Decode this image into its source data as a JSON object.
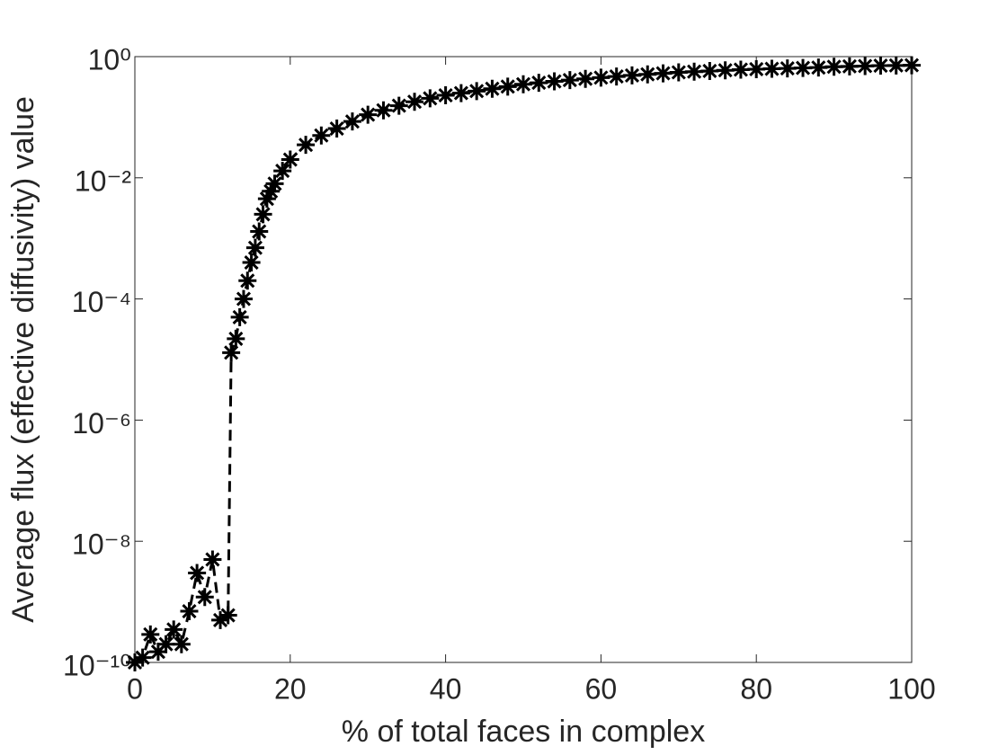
{
  "chart_data": {
    "type": "line",
    "xlabel": "% of total faces in complex",
    "ylabel": "Average flux (effective diffusivity) value",
    "x": [
      0,
      1,
      2,
      3,
      4,
      5,
      6,
      7,
      8,
      9,
      10,
      11,
      12,
      12.4,
      13,
      13.5,
      14,
      14.5,
      15,
      15.5,
      16,
      16.5,
      17,
      17.5,
      18,
      19,
      20,
      22,
      24,
      26,
      28,
      30,
      32,
      34,
      36,
      38,
      40,
      42,
      44,
      46,
      48,
      50,
      52,
      54,
      56,
      58,
      60,
      62,
      64,
      66,
      68,
      70,
      72,
      74,
      76,
      78,
      80,
      82,
      84,
      86,
      88,
      90,
      92,
      94,
      96,
      98,
      100
    ],
    "series": [
      {
        "color": "#000000",
        "values": [
          1e-10,
          1.2e-10,
          2.9e-10,
          1.5e-10,
          2e-10,
          3.5e-10,
          2e-10,
          7e-10,
          3e-09,
          1.2e-09,
          5e-09,
          5e-10,
          6e-10,
          1.3e-05,
          2.2e-05,
          5e-05,
          0.0001,
          0.0002,
          0.0004,
          0.0007,
          0.0013,
          0.0025,
          0.0045,
          0.006,
          0.008,
          0.013,
          0.02,
          0.035,
          0.05,
          0.065,
          0.085,
          0.11,
          0.13,
          0.155,
          0.18,
          0.205,
          0.23,
          0.25,
          0.27,
          0.295,
          0.32,
          0.35,
          0.37,
          0.39,
          0.41,
          0.43,
          0.45,
          0.47,
          0.49,
          0.51,
          0.53,
          0.55,
          0.565,
          0.58,
          0.595,
          0.61,
          0.62,
          0.63,
          0.64,
          0.65,
          0.66,
          0.68,
          0.69,
          0.7,
          0.71,
          0.715,
          0.72
        ]
      }
    ],
    "xlim": [
      0,
      100
    ],
    "xticks": [
      0,
      20,
      40,
      60,
      80,
      100
    ],
    "ylim": [
      1e-10,
      1
    ],
    "ylog": true,
    "yticks": [
      {
        "value": 1e-10,
        "label": "10⁻¹⁰"
      },
      {
        "value": 1e-08,
        "label": "10⁻⁸"
      },
      {
        "value": 1e-06,
        "label": "10⁻⁶"
      },
      {
        "value": 0.0001,
        "label": "10⁻⁴"
      },
      {
        "value": 0.01,
        "label": "10⁻²"
      },
      {
        "value": 1,
        "label": "10⁰"
      }
    ]
  }
}
